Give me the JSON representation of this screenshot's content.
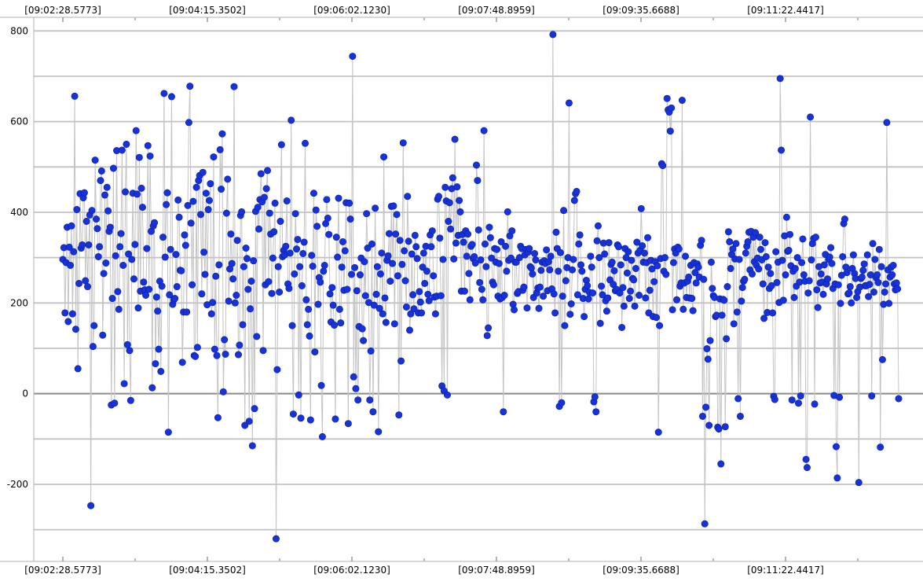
{
  "chart_data": {
    "type": "scatter",
    "connected": true,
    "grid": true,
    "x_axis_labels_top": [
      "[09:02:28.5773]",
      "[09:04:15.3502]",
      "[09:06:02.1230]",
      "[09:07:48.8959]",
      "[09:09:35.6688]",
      "[09:11:22.4417]"
    ],
    "x_axis_labels_bottom": [
      "[09:02:28.5773]",
      "[09:04:15.3502]",
      "[09:06:02.1230]",
      "[09:07:48.8959]",
      "[09:09:35.6688]",
      "[09:11:22.4417]"
    ],
    "y_ticks": [
      800,
      600,
      400,
      200,
      0,
      -200
    ],
    "ylim": [
      -370,
      830
    ],
    "x_range": [
      "09:02:28.5773",
      "09:13:00"
    ],
    "point_count": 700,
    "series": [
      {
        "values": [
          296,
          322,
          178,
          289,
          367,
          159,
          323,
          283,
          370,
          176,
          313,
          656,
          142,
          406,
          55,
          243,
          441,
          321,
          328,
          432,
          443,
          249,
          380,
          236,
          328,
          394,
          -247,
          404,
          104,
          150,
          515,
          385,
          364,
          302,
          324,
          470,
          491,
          129,
          265,
          438,
          288,
          455,
          403,
          358,
          367,
          -25,
          210,
          497,
          -21,
          304,
          536,
          225,
          186,
          324,
          353,
          537,
          283,
          22,
          445,
          550,
          108,
          308,
          95,
          -15,
          296,
          442,
          253,
          329,
          580,
          440,
          189,
          521,
          226,
          453,
          411,
          246,
          229,
          217,
          320,
          547,
          230,
          524,
          358,
          13,
          370,
          377,
          66,
          213,
          182,
          98,
          248,
          49,
          237,
          345,
          662,
          301,
          417,
          443,
          -85,
          218,
          318,
          655,
          197,
          207,
          210,
          307,
          236,
          427,
          389,
          272,
          271,
          69,
          180,
          350,
          327,
          180,
          415,
          598,
          678,
          376,
          240,
          424,
          84,
          82,
          455,
          102,
          470,
          481,
          395,
          220,
          488,
          312,
          263,
          442,
          196,
          406,
          426,
          463,
          176,
          201,
          522,
          98,
          259,
          84,
          -53,
          284,
          538,
          451,
          573,
          4,
          119,
          87,
          398,
          473,
          204,
          275,
          352,
          287,
          253,
          677,
          200,
          217,
          338,
          86,
          107,
          393,
          401,
          152,
          280,
          -70,
          321,
          298,
          230,
          -61,
          187,
          248,
          -115,
          293,
          -33,
          402,
          126,
          411,
          363,
          428,
          485,
          423,
          95,
          433,
          240,
          452,
          492,
          247,
          398,
          352,
          221,
          299,
          357,
          420,
          -320,
          53,
          280,
          224,
          380,
          549,
          302,
          316,
          306,
          325,
          425,
          242,
          232,
          310,
          603,
          150,
          -45,
          264,
          397,
          319,
          340,
          -3,
          280,
          -54,
          238,
          309,
          334,
          552,
          207,
          152,
          186,
          127,
          -58,
          305,
          281,
          442,
          92,
          405,
          369,
          197,
          256,
          246,
          18,
          -95,
          270,
          283,
          375,
          428,
          387,
          351,
          220,
          158,
          234,
          195,
          151,
          -56,
          345,
          301,
          431,
          186,
          156,
          279,
          335,
          228,
          315,
          421,
          230,
          -66,
          420,
          385,
          263,
          744,
          37,
          278,
          11,
          227,
          -14,
          148,
          262,
          299,
          143,
          117,
          291,
          216,
          397,
          321,
          201,
          -14,
          94,
          330,
          -40,
          195,
          409,
          219,
          280,
          -84,
          188,
          264,
          310,
          176,
          522,
          211,
          157,
          294,
          304,
          353,
          248,
          413,
          287,
          414,
          154,
          352,
          395,
          260,
          -47,
          338,
          72,
          285,
          553,
          315,
          249,
          191,
          435,
          336,
          140,
          176,
          308,
          218,
          187,
          349,
          324,
          298,
          178,
          225,
          202,
          178,
          279,
          310,
          243,
          325,
          270,
          219,
          205,
          350,
          324,
          359,
          260,
          213,
          176,
          215,
          429,
          435,
          343,
          216,
          17,
          296,
          6,
          455,
          425,
          -3,
          380,
          421,
          363,
          452,
          476,
          297,
          561,
          332,
          456,
          349,
          426,
          401,
          226,
          351,
          334,
          226,
          359,
          303,
          352,
          265,
          207,
          325,
          329,
          298,
          302,
          288,
          504,
          470,
          361,
          245,
          295,
          230,
          207,
          580,
          330,
          280,
          128,
          145,
          367,
          344,
          299,
          246,
          240,
          320,
          290,
          318,
          215,
          287,
          209,
          335,
          212,
          -40,
          217,
          325,
          270,
          401,
          294,
          348,
          299,
          359,
          197,
          185,
          290,
          290,
          221,
          225,
          300,
          325,
          320,
          228,
          235,
          306,
          318,
          189,
          312,
          320,
          280,
          277,
          264,
          212,
          309,
          295,
          222,
          233,
          188,
          235,
          272,
          290,
          215,
          293,
          287,
          317,
          227,
          291,
          273,
          303,
          231,
          792,
          220,
          178,
          356,
          320,
          270,
          -28,
          311,
          -20,
          215,
          404,
          150,
          249,
          278,
          300,
          641,
          175,
          198,
          273,
          296,
          426,
          441,
          446,
          218,
          330,
          350,
          284,
          270,
          210,
          170,
          230,
          250,
          238,
          209,
          223,
          303,
          279,
          222,
          -18,
          -7,
          -40,
          337,
          370,
          300,
          155,
          237,
          218,
          332,
          308,
          205,
          182,
          211,
          333,
          251,
          285,
          290,
          241,
          271,
          227,
          230,
          328,
          324,
          222,
          284,
          146,
          234,
          193,
          320,
          300,
          266,
          313,
          210,
          226,
          294,
          254,
          251,
          193,
          276,
          334,
          310,
          217,
          316,
          408,
          326,
          290,
          310,
          211,
          289,
          344,
          178,
          228,
          294,
          275,
          170,
          247,
          291,
          168,
          282,
          -85,
          150,
          298,
          507,
          503,
          270,
          300,
          263,
          651,
          626,
          621,
          579,
          630,
          185,
          289,
          319,
          310,
          207,
          323,
          319,
          237,
          244,
          647,
          186,
          244,
          303,
          212,
          248,
          257,
          211,
          283,
          210,
          183,
          289,
          267,
          244,
          286,
          279,
          257,
          327,
          338,
          -50,
          252,
          -287,
          -30,
          99,
          76,
          -70,
          117,
          290,
          232,
          216,
          212,
          170,
          173,
          -74,
          -78,
          209,
          -155,
          173,
          208,
          206,
          -73,
          121,
          236,
          357,
          335,
          276,
          307,
          319,
          154,
          297,
          331,
          180,
          -11,
          296,
          -50,
          204,
          234,
          248,
          252,
          310,
          325,
          335,
          356,
          273,
          358,
          264,
          345,
          291,
          355,
          283,
          299,
          275,
          345,
          318,
          295,
          242,
          166,
          333,
          302,
          179,
          279,
          232,
          265,
          238,
          178,
          -6,
          -13,
          313,
          245,
          290,
          201,
          695,
          537,
          294,
          206,
          348,
          262,
          389,
          314,
          316,
          351,
          282,
          -14,
          270,
          212,
          276,
          237,
          300,
          -21,
          246,
          -5,
          289,
          341,
          262,
          248,
          -145,
          -163,
          222,
          249,
          610,
          295,
          331,
          342,
          -23,
          345,
          229,
          190,
          280,
          244,
          264,
          246,
          219,
          284,
          307,
          242,
          253,
          296,
          301,
          322,
          287,
          232,
          -4,
          242,
          -117,
          -186,
          240,
          -8,
          199,
          261,
          302,
          375,
          385,
          279,
          267,
          220,
          222,
          236,
          200,
          276,
          306,
          265,
          254,
          212,
          225,
          -196,
          235,
          254,
          257,
          272,
          286,
          238,
          238,
          306,
          214,
          241,
          262,
          -5,
          331,
          224,
          296,
          256,
          262,
          245,
          318,
          -118,
          280,
          75,
          197,
          224,
          242,
          598,
          273,
          199,
          257,
          279,
          262,
          283,
          242,
          229,
          244,
          231,
          -11
        ]
      }
    ]
  }
}
